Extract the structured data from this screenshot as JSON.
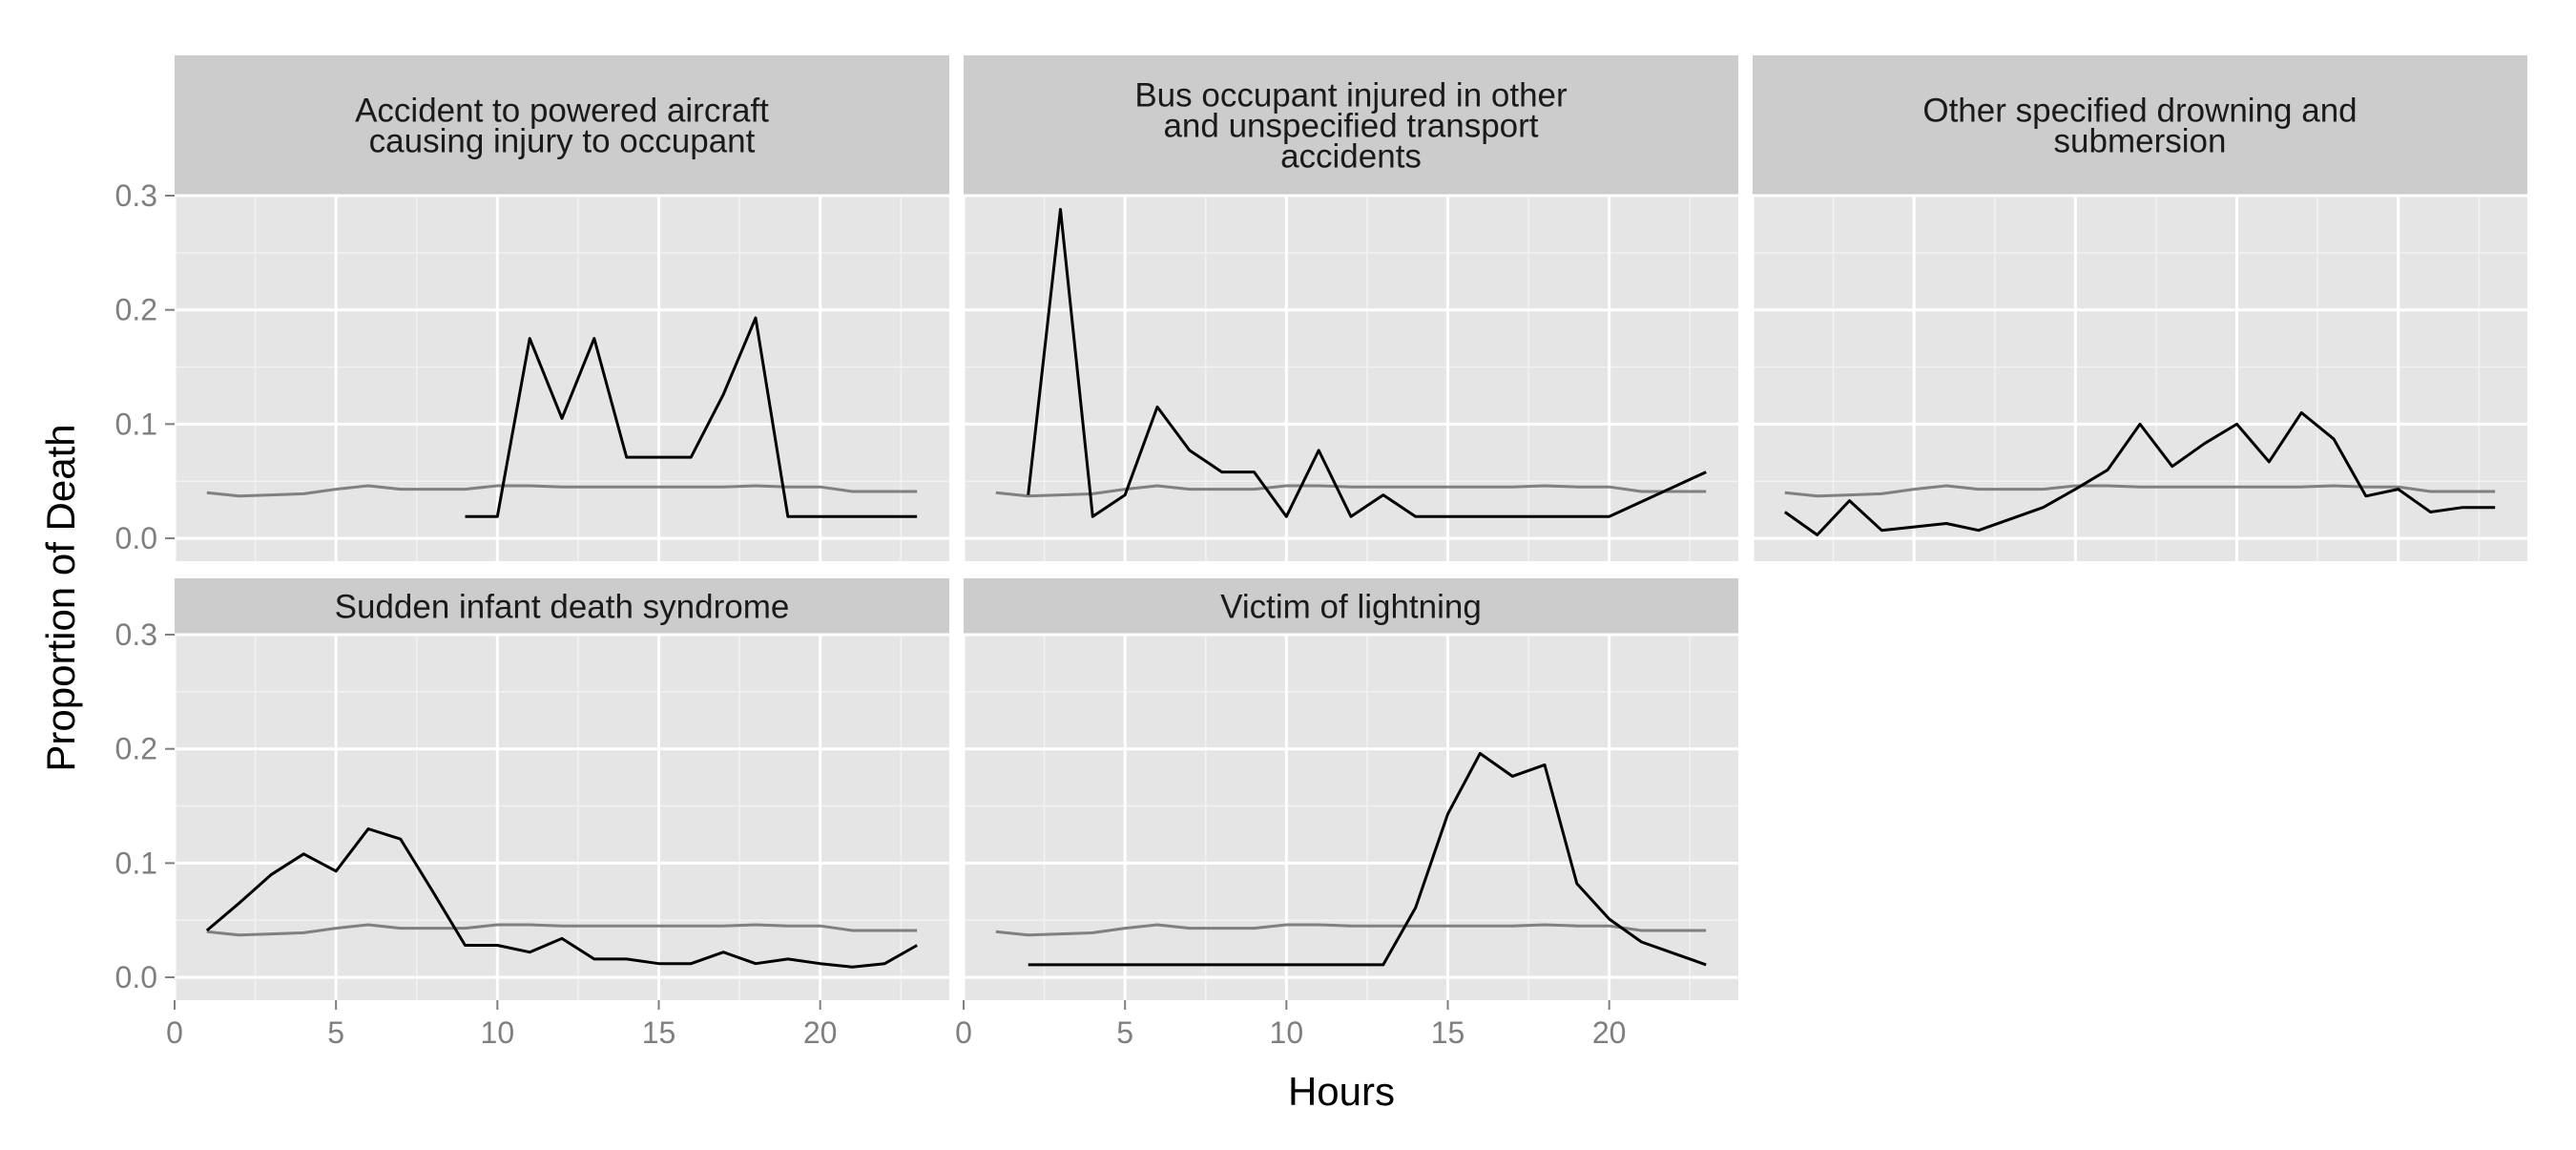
{
  "chart_data": {
    "type": "line",
    "layout": "facet-grid",
    "xlabel": "Hours",
    "ylabel": "Proportion of Death",
    "xlim": [
      0,
      24
    ],
    "ylim": [
      -0.02,
      0.3
    ],
    "x_ticks": [
      0,
      5,
      10,
      15,
      20
    ],
    "y_ticks": [
      0.0,
      0.1,
      0.2,
      0.3
    ],
    "y_tick_labels": [
      "0.0",
      "0.1",
      "0.2",
      "0.3"
    ],
    "grid": true,
    "colors": {
      "panel_background": "#e5e5e5",
      "strip_background": "#cccccc",
      "grid_major": "#ffffff",
      "grid_minor": "#f2f2f2",
      "series_line": "#000000",
      "baseline_line": "#808080",
      "axis_text": "#7f7f7f"
    },
    "baseline": {
      "x": [
        1,
        2,
        3,
        4,
        5,
        6,
        7,
        8,
        9,
        10,
        11,
        12,
        13,
        14,
        15,
        16,
        17,
        18,
        19,
        20,
        21,
        22,
        23
      ],
      "y": [
        0.04,
        0.037,
        0.038,
        0.039,
        0.043,
        0.046,
        0.043,
        0.043,
        0.043,
        0.046,
        0.046,
        0.045,
        0.045,
        0.045,
        0.045,
        0.045,
        0.045,
        0.046,
        0.045,
        0.045,
        0.041,
        0.041,
        0.041
      ]
    },
    "panels": [
      {
        "title": "Accident to powered aircraft\ncausing injury to occupant",
        "x": [
          9,
          10,
          11,
          12,
          13,
          14,
          15,
          16,
          17,
          18,
          19,
          20,
          21,
          22,
          23
        ],
        "y": [
          0.019,
          0.019,
          0.175,
          0.105,
          0.175,
          0.071,
          0.071,
          0.071,
          0.126,
          0.193,
          0.019,
          0.019,
          0.019,
          0.019,
          0.019
        ]
      },
      {
        "title": "Bus occupant injured in other\nand unspecified transport\naccidents",
        "x": [
          2,
          3,
          4,
          5,
          6,
          7,
          8,
          9,
          10,
          11,
          12,
          13,
          14,
          15,
          16,
          17,
          18,
          19,
          20,
          23
        ],
        "y": [
          0.038,
          0.288,
          0.019,
          0.038,
          0.115,
          0.077,
          0.058,
          0.058,
          0.019,
          0.077,
          0.019,
          0.038,
          0.019,
          0.019,
          0.019,
          0.019,
          0.019,
          0.019,
          0.019,
          0.058
        ]
      },
      {
        "title": "Other specified drowning and\nsubmersion",
        "x": [
          1,
          2,
          3,
          4,
          5,
          6,
          7,
          8,
          9,
          10,
          11,
          12,
          13,
          14,
          15,
          16,
          17,
          18,
          19,
          20,
          21,
          22,
          23
        ],
        "y": [
          0.023,
          0.003,
          0.033,
          0.007,
          0.01,
          0.013,
          0.007,
          0.017,
          0.027,
          0.043,
          0.06,
          0.1,
          0.063,
          0.083,
          0.1,
          0.067,
          0.11,
          0.087,
          0.037,
          0.043,
          0.023,
          0.027,
          0.027
        ]
      },
      {
        "title": "Sudden infant death syndrome",
        "x": [
          1,
          2,
          3,
          4,
          5,
          6,
          7,
          8,
          9,
          10,
          11,
          12,
          13,
          14,
          15,
          16,
          17,
          18,
          19,
          20,
          21,
          22,
          23
        ],
        "y": [
          0.041,
          0.065,
          0.09,
          0.108,
          0.093,
          0.13,
          0.121,
          0.075,
          0.028,
          0.028,
          0.022,
          0.034,
          0.016,
          0.016,
          0.012,
          0.012,
          0.022,
          0.012,
          0.016,
          0.012,
          0.009,
          0.012,
          0.028
        ]
      },
      {
        "title": "Victim of lightning",
        "x": [
          2,
          3,
          4,
          5,
          6,
          7,
          8,
          9,
          10,
          11,
          12,
          13,
          14,
          15,
          16,
          17,
          18,
          19,
          20,
          21,
          22,
          23
        ],
        "y": [
          0.011,
          0.011,
          0.011,
          0.011,
          0.011,
          0.011,
          0.011,
          0.011,
          0.011,
          0.011,
          0.011,
          0.011,
          0.061,
          0.143,
          0.196,
          0.176,
          0.186,
          0.082,
          0.051,
          0.031,
          0.021,
          0.011
        ]
      }
    ]
  }
}
